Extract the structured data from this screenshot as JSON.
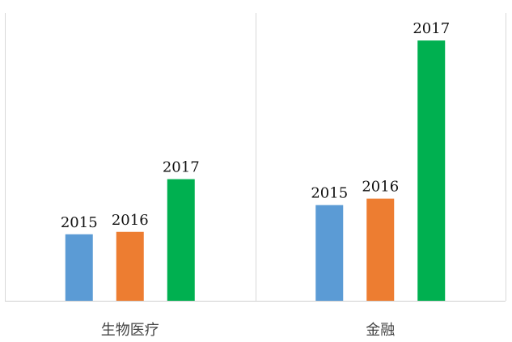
{
  "chart_data": {
    "type": "bar",
    "title": "",
    "xlabel": "",
    "ylabel": "",
    "categories": [
      "生物医疗",
      "金融"
    ],
    "series": [
      {
        "name": "2015",
        "values": [
          82,
          118
        ],
        "color": "#5b9bd5"
      },
      {
        "name": "2016",
        "values": [
          85,
          126
        ],
        "color": "#ed7d31"
      },
      {
        "name": "2017",
        "values": [
          150,
          321
        ],
        "color": "#00b050"
      }
    ],
    "ylim": [
      0,
      355
    ],
    "grid": false,
    "legend": "none",
    "data_labels": "series-name"
  }
}
